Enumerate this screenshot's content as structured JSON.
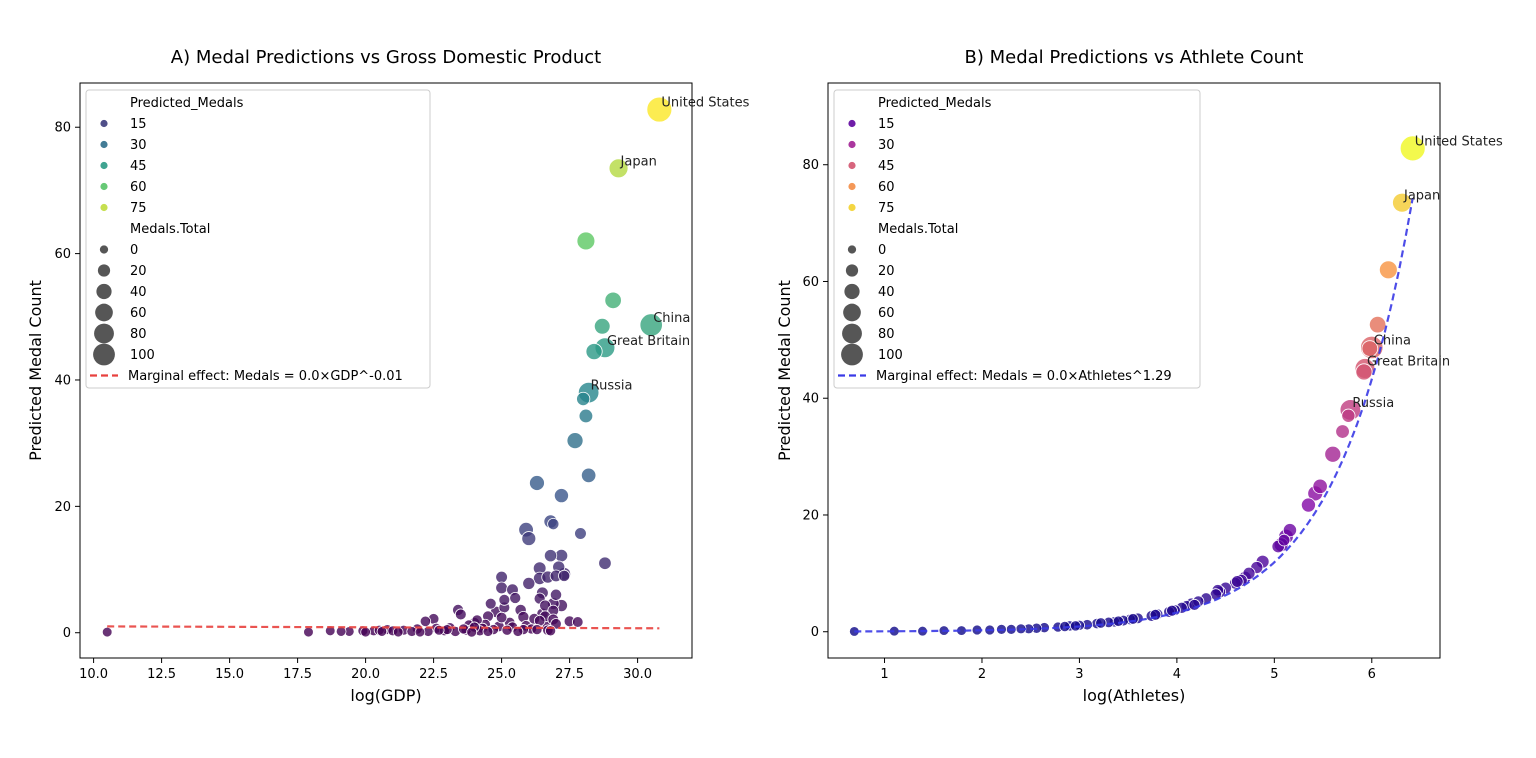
{
  "chart_data": [
    {
      "type": "scatter",
      "title": "A) Medal Predictions vs Gross Domestic Product",
      "xlabel": "log(GDP)",
      "ylabel": "Predicted Medal Count",
      "xlim": [
        9.5,
        32
      ],
      "ylim": [
        -4,
        87
      ],
      "xticks": [
        "10.0",
        "12.5",
        "15.0",
        "17.5",
        "20.0",
        "22.5",
        "25.0",
        "27.5",
        "30.0"
      ],
      "yticks": [
        "0",
        "20",
        "40",
        "60",
        "80"
      ],
      "grid": false,
      "palette": "viridis",
      "legend": {
        "placement": "top-left",
        "hue_title": "Predicted_Medals",
        "hue_items": [
          "15",
          "30",
          "45",
          "60",
          "75"
        ],
        "size_title": "Medals.Total",
        "size_items": [
          "0",
          "20",
          "40",
          "60",
          "80",
          "100"
        ],
        "line_label": "Marginal effect: Medals = 0.0×GDP^-0.01",
        "line_color": "#e8413e"
      },
      "fit_line": {
        "x": [
          10.5,
          30.8
        ],
        "y": [
          1.0,
          0.7
        ],
        "style": "dashed",
        "color": "#e8413e"
      },
      "annotations": [
        {
          "text": "United States",
          "x": 30.8,
          "y": 82.8
        },
        {
          "text": "Japan",
          "x": 29.3,
          "y": 73.5
        },
        {
          "text": "China",
          "x": 30.5,
          "y": 48.7
        },
        {
          "text": "Great Britain",
          "x": 28.8,
          "y": 45.1
        },
        {
          "text": "Russia",
          "x": 28.2,
          "y": 38.0
        }
      ],
      "points": [
        {
          "x": 30.8,
          "y": 82.8,
          "total": 113
        },
        {
          "x": 29.3,
          "y": 73.5,
          "total": 58
        },
        {
          "x": 28.1,
          "y": 62.0,
          "total": 50
        },
        {
          "x": 29.1,
          "y": 52.6,
          "total": 40
        },
        {
          "x": 30.5,
          "y": 48.7,
          "total": 88
        },
        {
          "x": 28.7,
          "y": 48.5,
          "total": 35
        },
        {
          "x": 28.8,
          "y": 45.1,
          "total": 65
        },
        {
          "x": 28.4,
          "y": 44.5,
          "total": 38
        },
        {
          "x": 28.2,
          "y": 38.0,
          "total": 71
        },
        {
          "x": 28.0,
          "y": 37.0,
          "total": 20
        },
        {
          "x": 28.1,
          "y": 34.3,
          "total": 22
        },
        {
          "x": 27.7,
          "y": 30.4,
          "total": 37
        },
        {
          "x": 28.2,
          "y": 24.9,
          "total": 27
        },
        {
          "x": 26.3,
          "y": 23.7,
          "total": 30
        },
        {
          "x": 27.2,
          "y": 21.7,
          "total": 25
        },
        {
          "x": 26.8,
          "y": 17.6,
          "total": 20
        },
        {
          "x": 26.9,
          "y": 17.2,
          "total": 10
        },
        {
          "x": 25.9,
          "y": 16.3,
          "total": 28
        },
        {
          "x": 26.0,
          "y": 14.9,
          "total": 24
        },
        {
          "x": 27.9,
          "y": 15.7,
          "total": 12
        },
        {
          "x": 28.8,
          "y": 11.0,
          "total": 16
        },
        {
          "x": 27.3,
          "y": 9.3,
          "total": 18
        },
        {
          "x": 27.0,
          "y": 9.0,
          "total": 12
        },
        {
          "x": 26.8,
          "y": 12.2,
          "total": 15
        },
        {
          "x": 27.2,
          "y": 12.2,
          "total": 16
        },
        {
          "x": 26.4,
          "y": 10.2,
          "total": 17
        },
        {
          "x": 27.1,
          "y": 10.4,
          "total": 14
        },
        {
          "x": 25.0,
          "y": 8.8,
          "total": 12
        },
        {
          "x": 26.4,
          "y": 8.6,
          "total": 16
        },
        {
          "x": 27.3,
          "y": 9.0,
          "total": 10
        },
        {
          "x": 26.7,
          "y": 8.8,
          "total": 14
        },
        {
          "x": 26.0,
          "y": 7.8,
          "total": 14
        },
        {
          "x": 25.0,
          "y": 7.1,
          "total": 12
        },
        {
          "x": 25.4,
          "y": 6.8,
          "total": 12
        },
        {
          "x": 26.5,
          "y": 6.3,
          "total": 12
        },
        {
          "x": 27.0,
          "y": 6.0,
          "total": 10
        },
        {
          "x": 26.4,
          "y": 5.4,
          "total": 9
        },
        {
          "x": 25.5,
          "y": 5.5,
          "total": 9
        },
        {
          "x": 26.9,
          "y": 4.6,
          "total": 12
        },
        {
          "x": 27.2,
          "y": 4.3,
          "total": 14
        },
        {
          "x": 26.6,
          "y": 4.3,
          "total": 9
        },
        {
          "x": 25.7,
          "y": 3.6,
          "total": 10
        },
        {
          "x": 24.8,
          "y": 3.3,
          "total": 10
        },
        {
          "x": 25.1,
          "y": 4.0,
          "total": 8
        },
        {
          "x": 26.5,
          "y": 3.0,
          "total": 10
        },
        {
          "x": 26.9,
          "y": 3.5,
          "total": 8
        },
        {
          "x": 25.8,
          "y": 2.5,
          "total": 9
        },
        {
          "x": 24.5,
          "y": 2.6,
          "total": 8
        },
        {
          "x": 26.2,
          "y": 2.2,
          "total": 8
        },
        {
          "x": 27.8,
          "y": 1.7,
          "total": 7
        },
        {
          "x": 27.5,
          "y": 1.8,
          "total": 8
        },
        {
          "x": 23.4,
          "y": 3.6,
          "total": 9
        },
        {
          "x": 23.5,
          "y": 2.9,
          "total": 8
        },
        {
          "x": 22.5,
          "y": 2.2,
          "total": 7
        },
        {
          "x": 22.2,
          "y": 1.8,
          "total": 6
        },
        {
          "x": 24.6,
          "y": 4.6,
          "total": 8
        },
        {
          "x": 25.1,
          "y": 5.2,
          "total": 8
        },
        {
          "x": 26.7,
          "y": 1.2,
          "total": 9
        },
        {
          "x": 24.0,
          "y": 1.6,
          "total": 6
        },
        {
          "x": 23.8,
          "y": 1.2,
          "total": 6
        },
        {
          "x": 24.9,
          "y": 1.0,
          "total": 7
        },
        {
          "x": 25.4,
          "y": 0.9,
          "total": 6
        },
        {
          "x": 26.1,
          "y": 0.6,
          "total": 5
        },
        {
          "x": 26.7,
          "y": 0.4,
          "total": 6
        },
        {
          "x": 24.3,
          "y": 0.7,
          "total": 5
        },
        {
          "x": 23.1,
          "y": 0.8,
          "total": 5
        },
        {
          "x": 22.6,
          "y": 0.7,
          "total": 5
        },
        {
          "x": 21.9,
          "y": 0.6,
          "total": 5
        },
        {
          "x": 21.4,
          "y": 0.4,
          "total": 4
        },
        {
          "x": 20.8,
          "y": 0.5,
          "total": 4
        },
        {
          "x": 20.3,
          "y": 0.3,
          "total": 4
        },
        {
          "x": 19.9,
          "y": 0.3,
          "total": 4
        },
        {
          "x": 19.4,
          "y": 0.2,
          "total": 3
        },
        {
          "x": 19.1,
          "y": 0.2,
          "total": 3
        },
        {
          "x": 18.7,
          "y": 0.3,
          "total": 3
        },
        {
          "x": 17.9,
          "y": 0.1,
          "total": 3
        },
        {
          "x": 10.5,
          "y": 0.1,
          "total": 3
        },
        {
          "x": 20.5,
          "y": 0.4,
          "total": 4
        },
        {
          "x": 21.0,
          "y": 0.3,
          "total": 4
        },
        {
          "x": 21.7,
          "y": 0.2,
          "total": 4
        },
        {
          "x": 22.3,
          "y": 0.2,
          "total": 4
        },
        {
          "x": 22.9,
          "y": 0.3,
          "total": 4
        },
        {
          "x": 23.3,
          "y": 0.2,
          "total": 5
        },
        {
          "x": 23.7,
          "y": 0.4,
          "total": 5
        },
        {
          "x": 24.2,
          "y": 0.3,
          "total": 5
        },
        {
          "x": 24.7,
          "y": 0.5,
          "total": 5
        },
        {
          "x": 25.2,
          "y": 0.4,
          "total": 5
        },
        {
          "x": 25.8,
          "y": 0.5,
          "total": 5
        },
        {
          "x": 26.3,
          "y": 0.5,
          "total": 5
        },
        {
          "x": 26.8,
          "y": 0.3,
          "total": 5
        },
        {
          "x": 22.0,
          "y": 0.1,
          "total": 3
        },
        {
          "x": 21.2,
          "y": 0.1,
          "total": 3
        },
        {
          "x": 20.0,
          "y": 0.1,
          "total": 3
        },
        {
          "x": 23.9,
          "y": 0.1,
          "total": 4
        },
        {
          "x": 24.5,
          "y": 0.2,
          "total": 4
        },
        {
          "x": 25.6,
          "y": 0.2,
          "total": 4
        },
        {
          "x": 23.6,
          "y": 0.6,
          "total": 5
        },
        {
          "x": 24.0,
          "y": 0.9,
          "total": 5
        },
        {
          "x": 24.4,
          "y": 1.3,
          "total": 6
        },
        {
          "x": 25.3,
          "y": 1.6,
          "total": 7
        },
        {
          "x": 25.9,
          "y": 1.1,
          "total": 6
        },
        {
          "x": 26.4,
          "y": 1.9,
          "total": 7
        },
        {
          "x": 26.6,
          "y": 2.6,
          "total": 8
        },
        {
          "x": 26.9,
          "y": 2.1,
          "total": 8
        },
        {
          "x": 27.0,
          "y": 1.4,
          "total": 7
        },
        {
          "x": 25.0,
          "y": 2.4,
          "total": 7
        },
        {
          "x": 24.1,
          "y": 2.0,
          "total": 6
        },
        {
          "x": 23.0,
          "y": 0.5,
          "total": 4
        },
        {
          "x": 22.7,
          "y": 0.4,
          "total": 4
        },
        {
          "x": 20.6,
          "y": 0.2,
          "total": 3
        }
      ]
    },
    {
      "type": "scatter",
      "title": "B) Medal Predictions vs Athlete Count",
      "xlabel": "log(Athletes)",
      "ylabel": "Predicted Medal Count",
      "xlim": [
        0.42,
        6.7
      ],
      "ylim": [
        -4.5,
        94
      ],
      "xticks": [
        "1",
        "2",
        "3",
        "4",
        "5",
        "6"
      ],
      "yticks": [
        "0",
        "20",
        "40",
        "60",
        "80"
      ],
      "grid": false,
      "palette": "plasma",
      "legend": {
        "placement": "top-left",
        "hue_title": "Predicted_Medals",
        "hue_items": [
          "15",
          "30",
          "45",
          "60",
          "75"
        ],
        "size_title": "Medals.Total",
        "size_items": [
          "0",
          "20",
          "40",
          "60",
          "80",
          "100"
        ],
        "line_label": "Marginal effect: Medals = 0.0×Athletes^1.29",
        "line_color": "#3a3ae6"
      },
      "fit_line": {
        "a": 0.0188,
        "b": 1.29,
        "x_range": [
          0.69,
          6.42
        ],
        "style": "dashed",
        "color": "#3a3ae6"
      },
      "annotations": [
        {
          "text": "United States",
          "x": 6.42,
          "y": 82.8
        },
        {
          "text": "Japan",
          "x": 6.31,
          "y": 73.5
        },
        {
          "text": "China",
          "x": 6.0,
          "y": 48.7
        },
        {
          "text": "Great Britain",
          "x": 5.93,
          "y": 45.1
        },
        {
          "text": "Russia",
          "x": 5.78,
          "y": 38.0
        }
      ],
      "points": [
        {
          "x": 6.42,
          "y": 82.8,
          "total": 113
        },
        {
          "x": 6.31,
          "y": 73.5,
          "total": 58
        },
        {
          "x": 6.17,
          "y": 62.0,
          "total": 50
        },
        {
          "x": 6.06,
          "y": 52.6,
          "total": 40
        },
        {
          "x": 6.0,
          "y": 48.7,
          "total": 88
        },
        {
          "x": 5.98,
          "y": 48.5,
          "total": 35
        },
        {
          "x": 5.93,
          "y": 45.1,
          "total": 65
        },
        {
          "x": 5.92,
          "y": 44.5,
          "total": 38
        },
        {
          "x": 5.78,
          "y": 38.0,
          "total": 71
        },
        {
          "x": 5.76,
          "y": 37.0,
          "total": 20
        },
        {
          "x": 5.7,
          "y": 34.3,
          "total": 22
        },
        {
          "x": 5.6,
          "y": 30.4,
          "total": 37
        },
        {
          "x": 5.47,
          "y": 24.9,
          "total": 27
        },
        {
          "x": 5.42,
          "y": 23.7,
          "total": 30
        },
        {
          "x": 5.35,
          "y": 21.7,
          "total": 25
        },
        {
          "x": 5.16,
          "y": 17.4,
          "total": 20
        },
        {
          "x": 5.12,
          "y": 16.3,
          "total": 28
        },
        {
          "x": 5.07,
          "y": 14.9,
          "total": 24
        },
        {
          "x": 5.1,
          "y": 15.7,
          "total": 12
        },
        {
          "x": 5.04,
          "y": 14.6,
          "total": 16
        },
        {
          "x": 4.88,
          "y": 12.0,
          "total": 18
        },
        {
          "x": 4.82,
          "y": 11.0,
          "total": 14
        },
        {
          "x": 4.74,
          "y": 10.0,
          "total": 14
        },
        {
          "x": 4.7,
          "y": 9.3,
          "total": 15
        },
        {
          "x": 4.66,
          "y": 8.8,
          "total": 14
        },
        {
          "x": 4.6,
          "y": 8.3,
          "total": 12
        },
        {
          "x": 4.5,
          "y": 7.5,
          "total": 12
        },
        {
          "x": 4.44,
          "y": 6.8,
          "total": 12
        },
        {
          "x": 4.4,
          "y": 6.4,
          "total": 10
        },
        {
          "x": 4.3,
          "y": 5.7,
          "total": 10
        },
        {
          "x": 4.22,
          "y": 5.2,
          "total": 9
        },
        {
          "x": 4.15,
          "y": 4.8,
          "total": 10
        },
        {
          "x": 4.1,
          "y": 4.4,
          "total": 9
        },
        {
          "x": 4.05,
          "y": 4.1,
          "total": 9
        },
        {
          "x": 3.98,
          "y": 3.7,
          "total": 8
        },
        {
          "x": 3.92,
          "y": 3.4,
          "total": 8
        },
        {
          "x": 3.8,
          "y": 3.0,
          "total": 8
        },
        {
          "x": 3.74,
          "y": 2.7,
          "total": 8
        },
        {
          "x": 3.6,
          "y": 2.3,
          "total": 7
        },
        {
          "x": 3.52,
          "y": 2.1,
          "total": 7
        },
        {
          "x": 3.45,
          "y": 1.9,
          "total": 7
        },
        {
          "x": 3.36,
          "y": 1.7,
          "total": 6
        },
        {
          "x": 3.3,
          "y": 1.6,
          "total": 6
        },
        {
          "x": 3.18,
          "y": 1.4,
          "total": 6
        },
        {
          "x": 3.08,
          "y": 1.2,
          "total": 6
        },
        {
          "x": 3.0,
          "y": 1.1,
          "total": 5
        },
        {
          "x": 2.9,
          "y": 1.0,
          "total": 5
        },
        {
          "x": 2.78,
          "y": 0.8,
          "total": 5
        },
        {
          "x": 2.64,
          "y": 0.7,
          "total": 5
        },
        {
          "x": 2.56,
          "y": 0.6,
          "total": 5
        },
        {
          "x": 2.48,
          "y": 0.5,
          "total": 4
        },
        {
          "x": 2.4,
          "y": 0.5,
          "total": 4
        },
        {
          "x": 2.3,
          "y": 0.4,
          "total": 4
        },
        {
          "x": 2.2,
          "y": 0.4,
          "total": 4
        },
        {
          "x": 2.08,
          "y": 0.3,
          "total": 4
        },
        {
          "x": 1.95,
          "y": 0.3,
          "total": 4
        },
        {
          "x": 1.79,
          "y": 0.2,
          "total": 3
        },
        {
          "x": 1.61,
          "y": 0.2,
          "total": 3
        },
        {
          "x": 1.39,
          "y": 0.1,
          "total": 3
        },
        {
          "x": 1.1,
          "y": 0.1,
          "total": 3
        },
        {
          "x": 0.69,
          "y": 0.05,
          "total": 3
        },
        {
          "x": 4.62,
          "y": 8.6,
          "total": 12
        },
        {
          "x": 4.42,
          "y": 7.1,
          "total": 11
        },
        {
          "x": 4.18,
          "y": 4.6,
          "total": 9
        },
        {
          "x": 3.95,
          "y": 3.6,
          "total": 8
        },
        {
          "x": 3.78,
          "y": 2.9,
          "total": 8
        },
        {
          "x": 3.55,
          "y": 2.2,
          "total": 7
        },
        {
          "x": 3.4,
          "y": 1.8,
          "total": 6
        },
        {
          "x": 3.22,
          "y": 1.5,
          "total": 6
        },
        {
          "x": 2.96,
          "y": 1.0,
          "total": 5
        },
        {
          "x": 2.85,
          "y": 0.9,
          "total": 5
        }
      ]
    }
  ]
}
